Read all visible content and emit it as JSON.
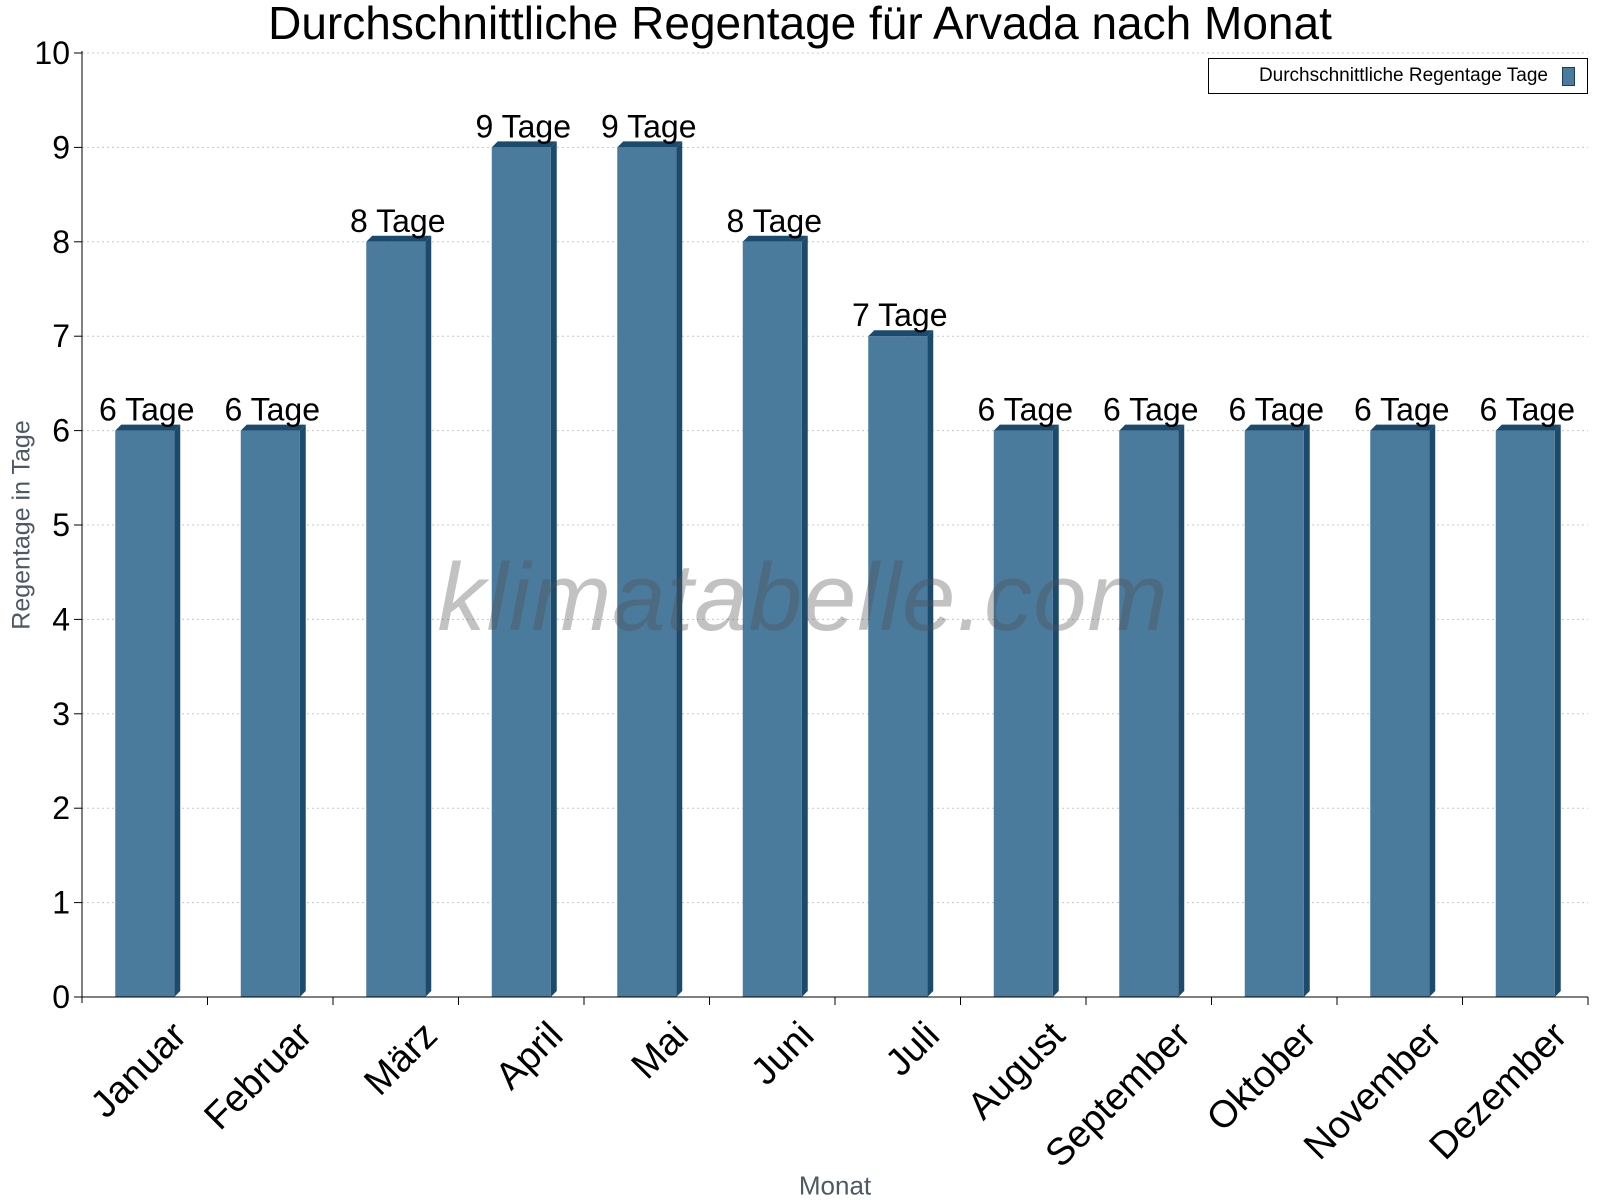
{
  "chart_data": {
    "type": "bar",
    "title": "Durchschnittliche Regentage für Arvada nach Monat",
    "xlabel": "Monat",
    "ylabel": "Regentage in Tage",
    "ylim": [
      0,
      10
    ],
    "yticks": [
      0,
      1,
      2,
      3,
      4,
      5,
      6,
      7,
      8,
      9,
      10
    ],
    "grid": true,
    "legend_position": "top-right",
    "categories": [
      "Januar",
      "Februar",
      "März",
      "April",
      "Mai",
      "Juni",
      "Juli",
      "August",
      "September",
      "Oktober",
      "November",
      "Dezember"
    ],
    "series": [
      {
        "name": "Durchschnittliche Regentage Tage",
        "values": [
          6,
          6,
          8,
          9,
          9,
          8,
          7,
          6,
          6,
          6,
          6,
          6
        ],
        "data_labels": [
          "6 Tage",
          "6 Tage",
          "8 Tage",
          "9 Tage",
          "9 Tage",
          "8 Tage",
          "7 Tage",
          "6 Tage",
          "6 Tage",
          "6 Tage",
          "6 Tage",
          "6 Tage"
        ],
        "color": "#4a7a9c"
      }
    ]
  },
  "watermark": "klimatabelle.com",
  "colors": {
    "bar_front": "#4a7a9c",
    "bar_side": "#1c4a6c",
    "bar_top": "#1c4a6c",
    "grid": "#c8c8c8",
    "axis_title": "#4f5964"
  }
}
